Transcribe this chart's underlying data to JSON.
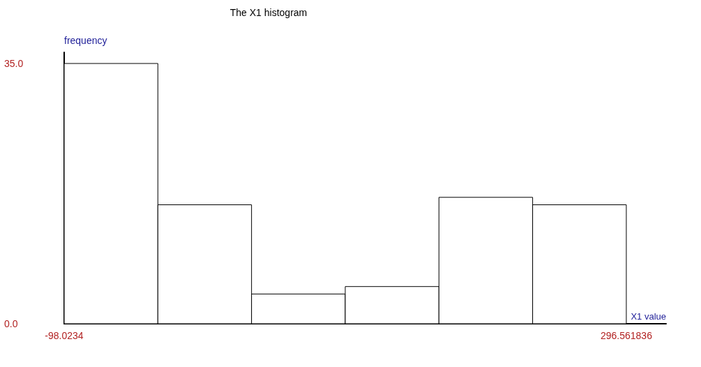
{
  "chart_data": {
    "type": "histogram",
    "title": "The X1 histogram",
    "xlabel": "X1 value",
    "ylabel": "frequency",
    "bins": [
      -98.0234,
      -32.2592,
      33.5049,
      99.2691,
      165.0333,
      230.7976,
      296.561836
    ],
    "values": [
      35,
      16,
      4,
      5,
      17,
      16
    ],
    "color": "#ffffff",
    "xlim": [
      -98.0234,
      324.5
    ],
    "xticks": [
      -98.0234,
      296.561836
    ],
    "ylim": [
      0,
      36.5
    ],
    "yticks": [
      {
        "value": 0,
        "label": "0.0"
      },
      {
        "value": 35,
        "label": "35.0"
      }
    ],
    "grid": false
  }
}
